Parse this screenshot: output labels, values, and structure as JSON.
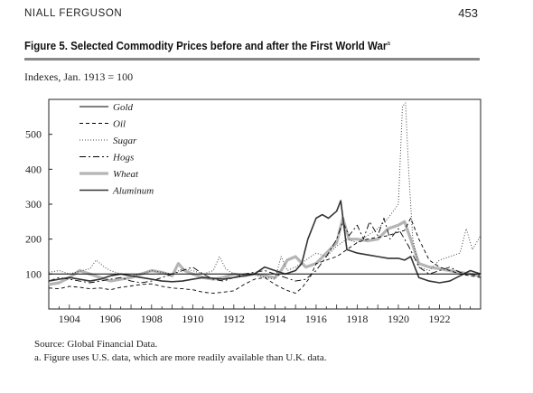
{
  "header": {
    "author": "NIALL FERGUSON",
    "page_number": "453"
  },
  "figure": {
    "label": "Figure 5.",
    "title": "Selected Commodity Prices before and after the First World War",
    "title_marker": "a",
    "subtitle": "Indexes, Jan. 1913 = 100"
  },
  "footer": {
    "source": "Source: Global Financial Data.",
    "note": "a. Figure uses U.S. data, which are more readily available than U.K. data."
  },
  "chart_data": {
    "type": "line",
    "xlim": [
      1903,
      1924
    ],
    "ylim": [
      0,
      600
    ],
    "yticks": [
      100,
      200,
      300,
      400,
      500
    ],
    "xticks": [
      1904,
      1906,
      1908,
      1910,
      1912,
      1914,
      1916,
      1918,
      1920,
      1922
    ],
    "reference_line": 100,
    "legend_position": "top-left",
    "series": [
      {
        "name": "Gold",
        "style": "solid",
        "color": "#000000",
        "x": [
          1903,
          1904,
          1906,
          1908,
          1910,
          1912,
          1914,
          1916,
          1918,
          1920,
          1922,
          1924
        ],
        "y": [
          100,
          100,
          100,
          100,
          100,
          100,
          100,
          100,
          100,
          100,
          100,
          100
        ]
      },
      {
        "name": "Oil",
        "style": "dashed",
        "color": "#000000",
        "x": [
          1903,
          1903.5,
          1904,
          1904.5,
          1905,
          1905.5,
          1906,
          1906.5,
          1907,
          1907.5,
          1908,
          1908.5,
          1909,
          1909.5,
          1910,
          1910.5,
          1911,
          1911.5,
          1912,
          1912.5,
          1913,
          1913.5,
          1914,
          1914.5,
          1915,
          1915.3,
          1915.7,
          1916,
          1916.5,
          1917,
          1917.5,
          1918,
          1918.5,
          1919,
          1919.5,
          1920,
          1920.3,
          1920.6,
          1921,
          1921.5,
          1922,
          1922.5,
          1923,
          1923.5,
          1924
        ],
        "y": [
          60,
          58,
          65,
          62,
          58,
          60,
          55,
          62,
          66,
          70,
          72,
          65,
          60,
          58,
          55,
          48,
          45,
          48,
          52,
          70,
          85,
          90,
          70,
          55,
          45,
          60,
          90,
          130,
          140,
          150,
          170,
          190,
          200,
          205,
          210,
          220,
          225,
          260,
          200,
          140,
          120,
          110,
          100,
          95,
          90
        ]
      },
      {
        "name": "Sugar",
        "style": "dotted",
        "color": "#333333",
        "x": [
          1903,
          1903.5,
          1904,
          1904.5,
          1905,
          1905.3,
          1905.7,
          1906,
          1906.5,
          1907,
          1907.5,
          1908,
          1908.5,
          1909,
          1909.5,
          1910,
          1910.5,
          1911,
          1911.3,
          1911.6,
          1912,
          1912.5,
          1913,
          1913.5,
          1914,
          1914.3,
          1914.6,
          1915,
          1915.5,
          1916,
          1916.5,
          1917,
          1917.5,
          1918,
          1918.5,
          1919,
          1919.5,
          1920,
          1920.2,
          1920.35,
          1920.5,
          1920.7,
          1921,
          1921.5,
          1922,
          1922.5,
          1923,
          1923.3,
          1923.6,
          1924
        ],
        "y": [
          105,
          110,
          100,
          108,
          115,
          140,
          120,
          110,
          100,
          95,
          100,
          110,
          105,
          100,
          115,
          110,
          100,
          110,
          150,
          115,
          100,
          95,
          100,
          90,
          85,
          150,
          110,
          120,
          140,
          160,
          150,
          180,
          200,
          190,
          210,
          230,
          260,
          300,
          580,
          590,
          400,
          200,
          120,
          110,
          140,
          150,
          160,
          230,
          170,
          210
        ]
      },
      {
        "name": "Hogs",
        "style": "dash-dot",
        "color": "#000000",
        "x": [
          1903,
          1903.5,
          1904,
          1904.5,
          1905,
          1905.5,
          1906,
          1906.5,
          1907,
          1907.5,
          1908,
          1908.5,
          1909,
          1909.5,
          1910,
          1910.5,
          1911,
          1911.5,
          1912,
          1912.5,
          1913,
          1913.5,
          1914,
          1914.5,
          1915,
          1915.5,
          1916,
          1916.5,
          1917,
          1917.3,
          1917.6,
          1918,
          1918.3,
          1918.6,
          1919,
          1919.3,
          1919.6,
          1920,
          1920.5,
          1921,
          1921.5,
          1922,
          1922.5,
          1923,
          1923.5,
          1924
        ],
        "y": [
          80,
          90,
          85,
          80,
          75,
          80,
          85,
          90,
          80,
          75,
          80,
          90,
          100,
          110,
          120,
          100,
          85,
          80,
          90,
          100,
          105,
          110,
          100,
          90,
          80,
          85,
          110,
          150,
          200,
          250,
          210,
          240,
          200,
          250,
          210,
          260,
          200,
          230,
          180,
          120,
          100,
          110,
          120,
          105,
          100,
          95
        ]
      },
      {
        "name": "Wheat",
        "style": "thick-gray",
        "color": "#b5b5b5",
        "x": [
          1903,
          1903.5,
          1904,
          1904.5,
          1905,
          1905.5,
          1906,
          1906.5,
          1907,
          1907.5,
          1908,
          1908.5,
          1909,
          1909.3,
          1909.6,
          1910,
          1910.5,
          1911,
          1911.5,
          1912,
          1912.5,
          1913,
          1913.5,
          1914,
          1914.3,
          1914.6,
          1915,
          1915.5,
          1916,
          1916.5,
          1917,
          1917.3,
          1917.6,
          1918,
          1918.5,
          1919,
          1919.5,
          1920,
          1920.3,
          1920.6,
          1921,
          1921.5,
          1922,
          1922.5,
          1923,
          1923.5,
          1924
        ],
        "y": [
          70,
          75,
          90,
          110,
          100,
          90,
          80,
          85,
          90,
          100,
          110,
          105,
          95,
          130,
          110,
          100,
          90,
          85,
          90,
          100,
          95,
          100,
          95,
          90,
          110,
          140,
          150,
          120,
          130,
          160,
          190,
          260,
          200,
          200,
          195,
          200,
          230,
          240,
          250,
          200,
          130,
          120,
          115,
          110,
          105,
          100,
          95
        ]
      },
      {
        "name": "Aluminum",
        "style": "solid-medium",
        "color": "#333333",
        "x": [
          1903,
          1903.5,
          1904,
          1904.5,
          1905,
          1905.5,
          1906,
          1906.5,
          1907,
          1907.5,
          1908,
          1908.5,
          1909,
          1909.5,
          1910,
          1910.5,
          1911,
          1911.5,
          1912,
          1912.5,
          1913,
          1913.5,
          1914,
          1914.5,
          1915,
          1915.3,
          1915.6,
          1916,
          1916.3,
          1916.6,
          1917,
          1917.2,
          1917.5,
          1918,
          1918.5,
          1919,
          1919.5,
          1920,
          1920.3,
          1920.6,
          1921,
          1921.5,
          1922,
          1922.5,
          1923,
          1923.5,
          1924
        ],
        "y": [
          80,
          85,
          90,
          85,
          80,
          85,
          95,
          100,
          95,
          90,
          85,
          80,
          78,
          80,
          85,
          90,
          88,
          85,
          90,
          95,
          100,
          120,
          110,
          100,
          110,
          130,
          200,
          260,
          270,
          260,
          280,
          310,
          170,
          160,
          155,
          150,
          145,
          145,
          140,
          150,
          90,
          80,
          75,
          80,
          95,
          110,
          100
        ]
      }
    ]
  }
}
